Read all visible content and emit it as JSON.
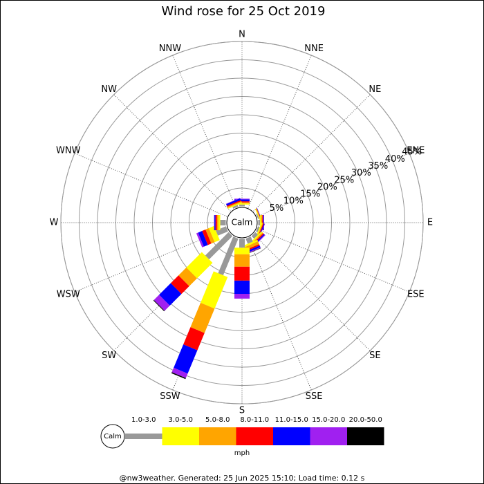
{
  "chart_data": {
    "type": "windrose",
    "title": "Wind rose for 25 Oct 2019",
    "center_label": "Calm",
    "legend_title": "mph",
    "footer": "@nw3weather. Generated: 25 Jun 2025 15:10; Load time: 0.12 s",
    "categories": [
      "N",
      "NNE",
      "NE",
      "ENE",
      "E",
      "ESE",
      "SE",
      "SSE",
      "S",
      "SSW",
      "SW",
      "WSW",
      "W",
      "WNW",
      "NW",
      "NNW"
    ],
    "rlim": [
      0,
      45
    ],
    "rticks": [
      {
        "value": 5,
        "label": "5%"
      },
      {
        "value": 10,
        "label": "10%"
      },
      {
        "value": 15,
        "label": "15%"
      },
      {
        "value": 20,
        "label": "20%"
      },
      {
        "value": 25,
        "label": "25%"
      },
      {
        "value": 30,
        "label": "30%"
      },
      {
        "value": 35,
        "label": "35%"
      },
      {
        "value": 40,
        "label": "40%"
      },
      {
        "value": 45,
        "label": "45%"
      }
    ],
    "series": [
      {
        "name": "1.0-3.0",
        "color": "#999999",
        "values": [
          0.5,
          0,
          0,
          0.3,
          0.5,
          0.5,
          1,
          1.5,
          2.4,
          10.8,
          9,
          3,
          1.5,
          0,
          0,
          0.5
        ]
      },
      {
        "name": "3.0-5.0",
        "color": "#ffff00",
        "values": [
          0.3,
          0,
          0,
          0.2,
          0.3,
          0.3,
          0.4,
          0.5,
          1.8,
          9.3,
          6,
          1.5,
          0.5,
          0,
          0,
          0.3
        ]
      },
      {
        "name": "5.0-8.0",
        "color": "#ffa500",
        "values": [
          0.3,
          0,
          0,
          0.2,
          0.3,
          0.2,
          0.3,
          0.8,
          3.4,
          7.2,
          3,
          1,
          0.4,
          0,
          0,
          0.3
        ]
      },
      {
        "name": "8.0-11.0",
        "color": "#ff0000",
        "values": [
          0.3,
          0,
          0,
          0.1,
          0.2,
          0.2,
          0.3,
          0.4,
          3.8,
          5.1,
          3,
          1,
          0.4,
          0,
          0,
          0.3
        ]
      },
      {
        "name": "11.0-15.0",
        "color": "#0000ff",
        "values": [
          0.5,
          0,
          0,
          0.1,
          0.2,
          0.2,
          0.3,
          0.5,
          3.6,
          6.9,
          4.5,
          1.2,
          0.3,
          0,
          0,
          0.5
        ]
      },
      {
        "name": "15.0-20.0",
        "color": "#a020f0",
        "values": [
          0.2,
          0,
          0,
          0,
          0.1,
          0.1,
          0.2,
          0.2,
          1.3,
          1.3,
          2,
          0.5,
          0.1,
          0,
          0,
          0.1
        ]
      },
      {
        "name": "20.0-50.0",
        "color": "#000000",
        "values": [
          0,
          0,
          0,
          0,
          0,
          0,
          0,
          0.1,
          0,
          0.3,
          0.2,
          0,
          0,
          0,
          0,
          0
        ]
      }
    ]
  }
}
